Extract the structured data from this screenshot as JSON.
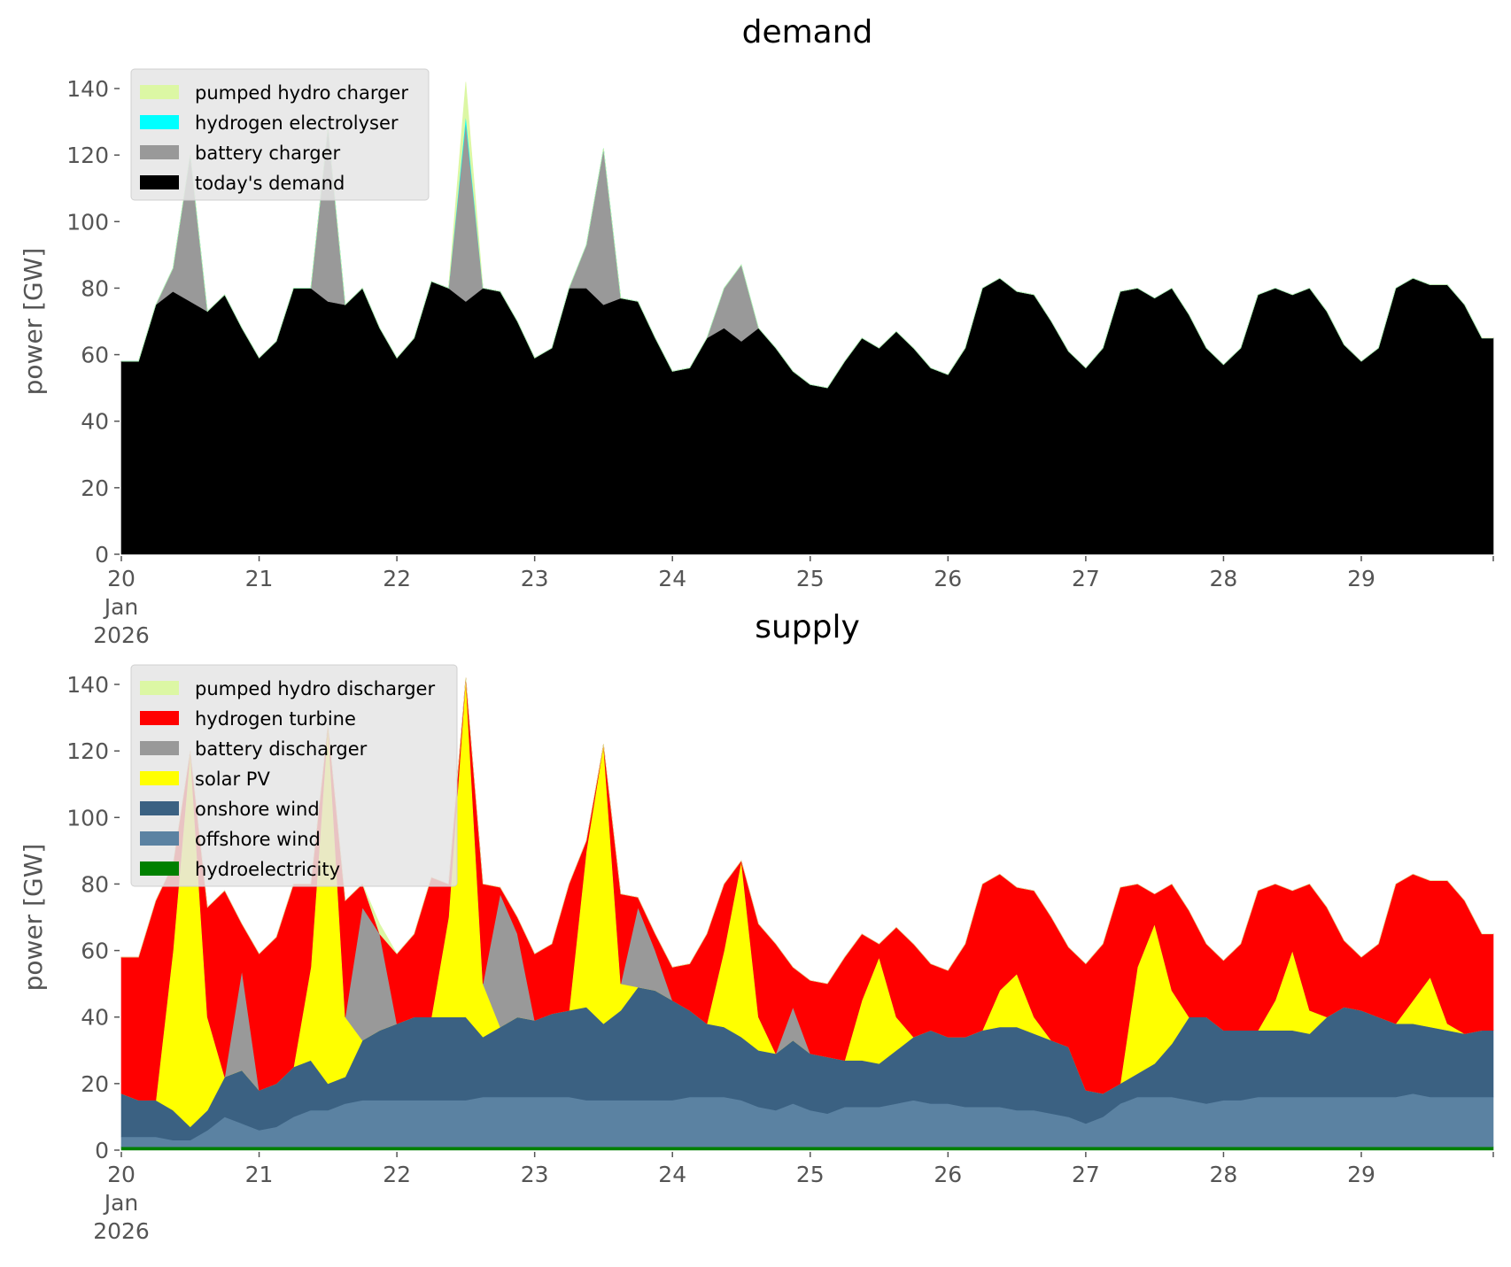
{
  "chart_data": [
    {
      "type": "area",
      "stacked": true,
      "title": "demand",
      "xlabel": "",
      "ylabel": "power [GW]",
      "x_start_day": 20,
      "x_step_hours": 3,
      "xlim_days": [
        20,
        29.958
      ],
      "ylim": [
        0,
        145
      ],
      "yticks": [
        0,
        20,
        40,
        60,
        80,
        100,
        120,
        140
      ],
      "xticks": [
        {
          "day": 20,
          "label": "20",
          "sub": [
            "Jan",
            "2026"
          ]
        },
        {
          "day": 21,
          "label": "21"
        },
        {
          "day": 22,
          "label": "22"
        },
        {
          "day": 23,
          "label": "23"
        },
        {
          "day": 24,
          "label": "24"
        },
        {
          "day": 25,
          "label": "25"
        },
        {
          "day": 26,
          "label": "26"
        },
        {
          "day": 27,
          "label": "27"
        },
        {
          "day": 28,
          "label": "28"
        },
        {
          "day": 29,
          "label": "29"
        }
      ],
      "legend_position": "top-left",
      "series": [
        {
          "name": "today's demand",
          "color": "#000000",
          "values": [
            58,
            58,
            75,
            79,
            76,
            73,
            78,
            68,
            59,
            64,
            80,
            80,
            76,
            75,
            80,
            68,
            59,
            65,
            82,
            80,
            76,
            80,
            79,
            70,
            59,
            62,
            80,
            80,
            75,
            77,
            76,
            65,
            55,
            56,
            65,
            68,
            64,
            68,
            62,
            55,
            51,
            50,
            58,
            65,
            62,
            67,
            62,
            56,
            54,
            62,
            80,
            83,
            79,
            78,
            70,
            61,
            56,
            62,
            79,
            80,
            77,
            80,
            72,
            62,
            57,
            62,
            78,
            80,
            78,
            80,
            73,
            63,
            58,
            62,
            80,
            83,
            81,
            81,
            75,
            65
          ]
        },
        {
          "name": "battery charger",
          "color": "#999999",
          "values": [
            0,
            0,
            0,
            7,
            44,
            0,
            0,
            0,
            0,
            0,
            0,
            0,
            52,
            0,
            0,
            0,
            0,
            0,
            0,
            0,
            54,
            0,
            0,
            0,
            0,
            0,
            0,
            13,
            47,
            0,
            0,
            0,
            0,
            0,
            0,
            12,
            23,
            0,
            0,
            0,
            0,
            0,
            0,
            0,
            0,
            0,
            0,
            0,
            0,
            0,
            0,
            0,
            0,
            0,
            0,
            0,
            0,
            0,
            0,
            0,
            0,
            0,
            0,
            0,
            0,
            0,
            0,
            0,
            0,
            0,
            0,
            0,
            0,
            0,
            0,
            0,
            0,
            0,
            0,
            0
          ]
        },
        {
          "name": "hydrogen electrolyser",
          "color": "#00ffff",
          "values": [
            0,
            0,
            0,
            0,
            0,
            0,
            0,
            0,
            0,
            0,
            0,
            0,
            0,
            0,
            0,
            0,
            0,
            0,
            0,
            0,
            2,
            0,
            0,
            0,
            0,
            0,
            0,
            0,
            0,
            0,
            0,
            0,
            0,
            0,
            0,
            0,
            0,
            0,
            0,
            0,
            0,
            0,
            0,
            0,
            0,
            0,
            0,
            0,
            0,
            0,
            0,
            0,
            0,
            0,
            0,
            0,
            0,
            0,
            0,
            0,
            0,
            0,
            0,
            0,
            0,
            0,
            0,
            0,
            0,
            0,
            0,
            0,
            0,
            0,
            0,
            0,
            0,
            0,
            0,
            0
          ]
        },
        {
          "name": "pumped hydro charger",
          "color": "#dcf7a4",
          "values": [
            0,
            0,
            0,
            0,
            0,
            0,
            0,
            0,
            0,
            0,
            0,
            0,
            0,
            0,
            0,
            0,
            0,
            0,
            0,
            0,
            10,
            0,
            0,
            0,
            0,
            0,
            0,
            0,
            0,
            0,
            0,
            0,
            0,
            0,
            0,
            0,
            0,
            0,
            0,
            0,
            0,
            0,
            0,
            0,
            0,
            0,
            0,
            0,
            0,
            0,
            0,
            0,
            0,
            0,
            0,
            0,
            0,
            0,
            0,
            0,
            0,
            0,
            0,
            0,
            0,
            0,
            0,
            0,
            0,
            0,
            0,
            0,
            0,
            0,
            0,
            0,
            0,
            0,
            0,
            0
          ]
        }
      ],
      "legend": [
        "pumped hydro charger",
        "hydrogen electrolyser",
        "battery charger",
        "today's demand"
      ]
    },
    {
      "type": "area",
      "stacked": true,
      "title": "supply",
      "xlabel": "",
      "ylabel": "power [GW]",
      "x_start_day": 20,
      "x_step_hours": 3,
      "xlim_days": [
        20,
        29.958
      ],
      "ylim": [
        0,
        145
      ],
      "yticks": [
        0,
        20,
        40,
        60,
        80,
        100,
        120,
        140
      ],
      "xticks": [
        {
          "day": 20,
          "label": "20",
          "sub": [
            "Jan",
            "2026"
          ]
        },
        {
          "day": 21,
          "label": "21"
        },
        {
          "day": 22,
          "label": "22"
        },
        {
          "day": 23,
          "label": "23"
        },
        {
          "day": 24,
          "label": "24"
        },
        {
          "day": 25,
          "label": "25"
        },
        {
          "day": 26,
          "label": "26"
        },
        {
          "day": 27,
          "label": "27"
        },
        {
          "day": 28,
          "label": "28"
        },
        {
          "day": 29,
          "label": "29"
        }
      ],
      "legend_position": "top-left",
      "series": [
        {
          "name": "hydroelectricity",
          "color": "#008000",
          "values": [
            1,
            1,
            1,
            1,
            1,
            1,
            1,
            1,
            1,
            1,
            1,
            1,
            1,
            1,
            1,
            1,
            1,
            1,
            1,
            1,
            1,
            1,
            1,
            1,
            1,
            1,
            1,
            1,
            1,
            1,
            1,
            1,
            1,
            1,
            1,
            1,
            1,
            1,
            1,
            1,
            1,
            1,
            1,
            1,
            1,
            1,
            1,
            1,
            1,
            1,
            1,
            1,
            1,
            1,
            1,
            1,
            1,
            1,
            1,
            1,
            1,
            1,
            1,
            1,
            1,
            1,
            1,
            1,
            1,
            1,
            1,
            1,
            1,
            1,
            1,
            1,
            1,
            1,
            1,
            1
          ]
        },
        {
          "name": "offshore wind",
          "color": "#5b82a2",
          "values": [
            3,
            3,
            3,
            2,
            2,
            5,
            9,
            7,
            5,
            6,
            9,
            11,
            11,
            13,
            14,
            14,
            14,
            14,
            14,
            14,
            14,
            15,
            15,
            15,
            15,
            15,
            15,
            14,
            14,
            14,
            14,
            14,
            14,
            15,
            15,
            15,
            14,
            12,
            11,
            13,
            11,
            10,
            12,
            12,
            12,
            13,
            14,
            13,
            13,
            12,
            12,
            12,
            11,
            11,
            10,
            9,
            7,
            9,
            13,
            15,
            15,
            15,
            14,
            13,
            14,
            14,
            15,
            15,
            15,
            15,
            15,
            15,
            15,
            15,
            15,
            16,
            15,
            15,
            15,
            15
          ]
        },
        {
          "name": "onshore wind",
          "color": "#3b6182",
          "values": [
            13,
            11,
            11,
            9,
            4,
            6,
            12,
            16,
            12,
            13,
            15,
            15,
            8,
            8,
            18,
            21,
            23,
            25,
            25,
            25,
            25,
            18,
            21,
            24,
            23,
            25,
            26,
            28,
            23,
            27,
            34,
            33,
            30,
            26,
            22,
            21,
            19,
            17,
            17,
            19,
            17,
            17,
            14,
            14,
            13,
            16,
            19,
            22,
            20,
            21,
            23,
            24,
            25,
            23,
            22,
            21,
            10,
            7,
            6,
            7,
            10,
            16,
            25,
            26,
            21,
            21,
            20,
            20,
            20,
            19,
            24,
            27,
            26,
            24,
            22,
            21,
            21,
            20,
            19,
            20
          ]
        },
        {
          "name": "solar PV",
          "color": "#ffff00",
          "values": [
            0,
            0,
            0,
            48,
            113,
            28,
            0,
            0,
            0,
            0,
            0,
            28,
            108,
            18,
            0,
            0,
            0,
            0,
            0,
            30,
            102,
            16,
            0,
            0,
            0,
            0,
            0,
            47,
            84,
            8,
            0,
            0,
            0,
            0,
            0,
            23,
            53,
            10,
            0,
            0,
            0,
            0,
            0,
            18,
            32,
            10,
            0,
            0,
            0,
            0,
            0,
            11,
            16,
            5,
            0,
            0,
            0,
            0,
            0,
            32,
            42,
            16,
            0,
            0,
            0,
            0,
            0,
            9,
            24,
            7,
            0,
            0,
            0,
            0,
            0,
            7,
            15,
            2,
            0,
            0
          ]
        },
        {
          "name": "battery discharger",
          "color": "#999999",
          "values": [
            0,
            0,
            0,
            0,
            0,
            0,
            0,
            30,
            0,
            0,
            0,
            0,
            0,
            0,
            40,
            29,
            0,
            0,
            0,
            0,
            0,
            0,
            40,
            25,
            0,
            0,
            0,
            0,
            0,
            0,
            24,
            12,
            0,
            0,
            0,
            0,
            0,
            0,
            0,
            10,
            0,
            0,
            0,
            0,
            0,
            0,
            0,
            0,
            0,
            0,
            0,
            0,
            0,
            0,
            0,
            0,
            0,
            0,
            0,
            0,
            0,
            0,
            0,
            0,
            0,
            0,
            0,
            0,
            0,
            0,
            0,
            0,
            0,
            0,
            0,
            0,
            0,
            0,
            0,
            0
          ]
        },
        {
          "name": "hydrogen turbine",
          "color": "#ff0000",
          "values": [
            41,
            43,
            60,
            26,
            0,
            33,
            56,
            14,
            41,
            44,
            55,
            25,
            0,
            35,
            7,
            0,
            21,
            25,
            42,
            10,
            0,
            30,
            2,
            5,
            20,
            21,
            38,
            3,
            0,
            27,
            3,
            5,
            10,
            14,
            27,
            20,
            0,
            28,
            33,
            12,
            22,
            22,
            31,
            20,
            4,
            27,
            28,
            20,
            20,
            28,
            44,
            35,
            26,
            38,
            37,
            30,
            38,
            45,
            59,
            25,
            9,
            32,
            32,
            22,
            21,
            26,
            42,
            35,
            18,
            38,
            33,
            20,
            16,
            22,
            42,
            38,
            29,
            43,
            40,
            29
          ]
        },
        {
          "name": "pumped hydro discharger",
          "color": "#dcf7a4",
          "values": [
            0,
            0,
            0,
            0,
            0,
            0,
            0,
            0,
            0,
            0,
            0,
            0,
            0,
            0,
            0,
            3,
            0,
            0,
            0,
            0,
            0,
            0,
            0,
            0,
            0,
            0,
            0,
            0,
            0,
            0,
            0,
            0,
            0,
            0,
            0,
            0,
            0,
            0,
            0,
            0,
            0,
            0,
            0,
            0,
            0,
            0,
            0,
            0,
            0,
            0,
            0,
            0,
            0,
            0,
            0,
            0,
            0,
            0,
            0,
            0,
            0,
            0,
            0,
            0,
            0,
            0,
            0,
            0,
            0,
            0,
            0,
            0,
            0,
            0,
            0,
            0,
            0,
            0,
            0,
            0
          ]
        }
      ],
      "legend": [
        "pumped hydro discharger",
        "hydrogen turbine",
        "battery discharger",
        "solar PV",
        "onshore wind",
        "offshore wind",
        "hydroelectricity"
      ]
    }
  ]
}
